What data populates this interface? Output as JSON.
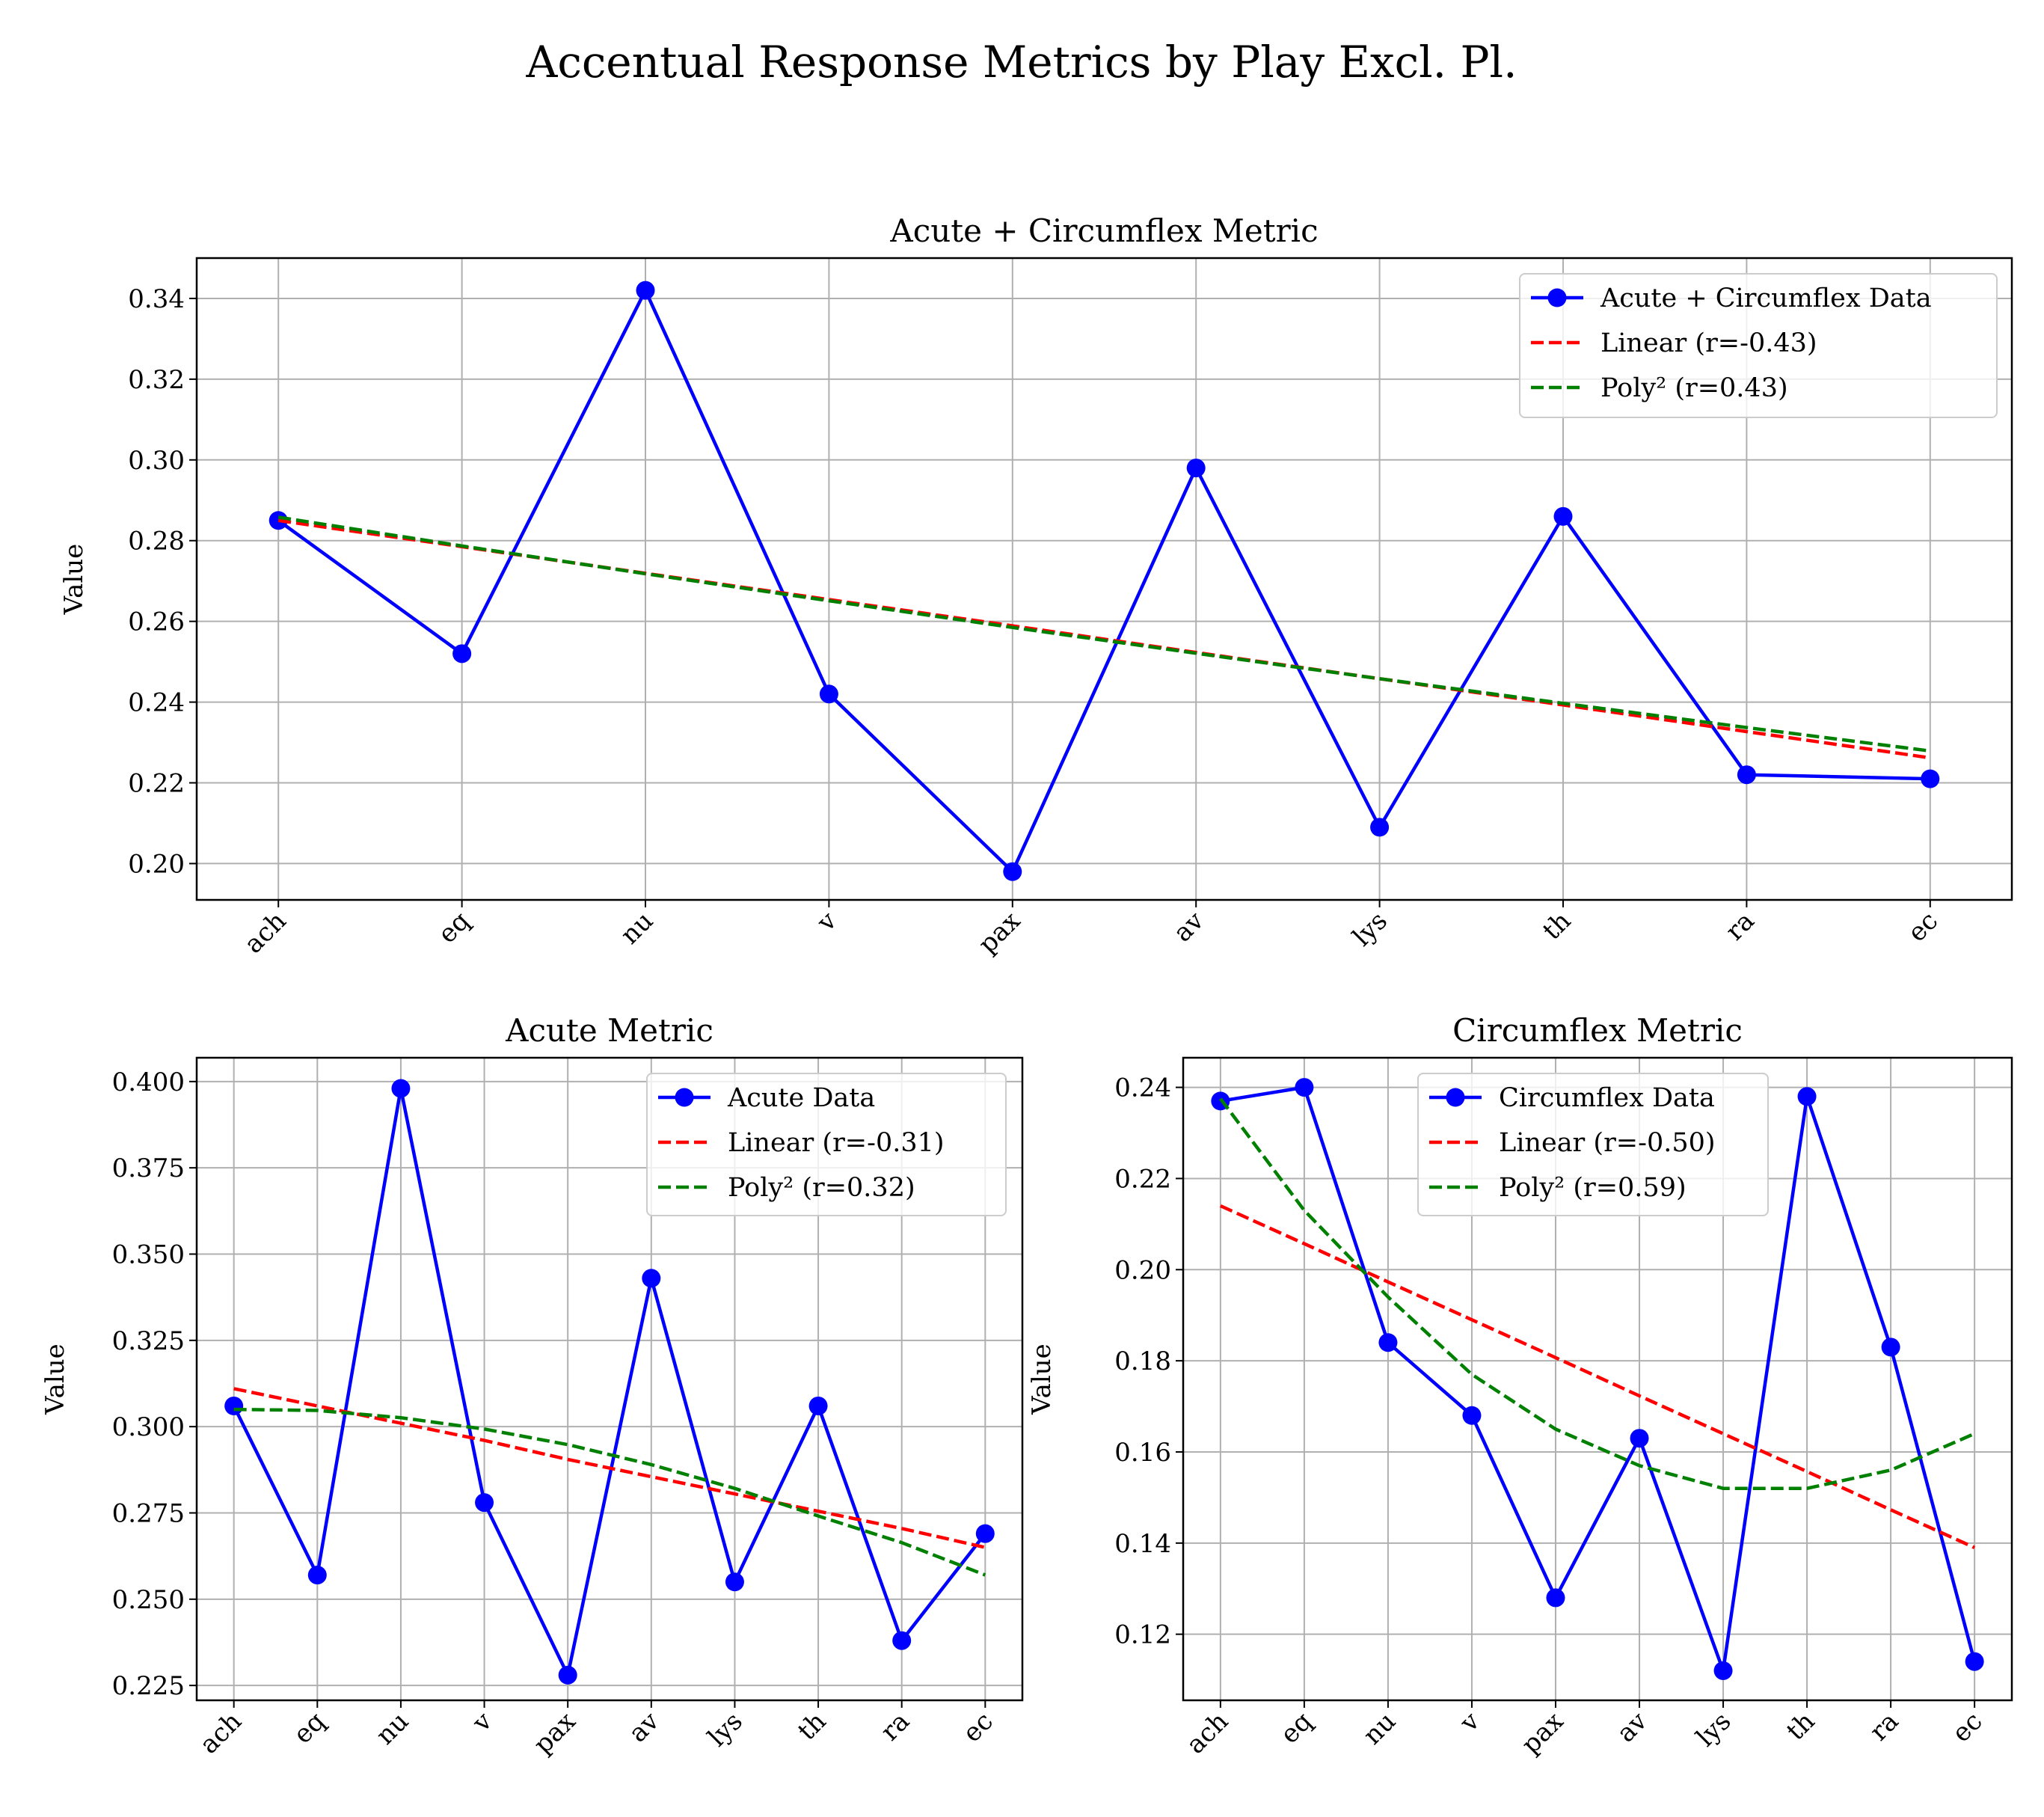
{
  "figure": {
    "title": "Accentual Response Metrics by Play Excl. Pl."
  },
  "colors": {
    "data": "#0000ff",
    "linear": "#ff0000",
    "poly": "#008000",
    "grid": "#b0b0b0",
    "axes": "#000000"
  },
  "chart_data": [
    {
      "type": "line",
      "title": "Acute + Circumflex Metric",
      "xlabel": "",
      "ylabel": "Value",
      "categories": [
        "ach",
        "eq",
        "nu",
        "v",
        "pax",
        "av",
        "lys",
        "th",
        "ra",
        "ec"
      ],
      "ylim": [
        0.191,
        0.35
      ],
      "yticks": [
        0.2,
        0.22,
        0.24,
        0.26,
        0.28,
        0.3,
        0.32,
        0.34
      ],
      "ytick_labels": [
        "0.20",
        "0.22",
        "0.24",
        "0.26",
        "0.28",
        "0.30",
        "0.32",
        "0.34"
      ],
      "grid": true,
      "legend": "top-right",
      "series": [
        {
          "name": "Acute + Circumflex Data",
          "style": "line-marker",
          "values": [
            0.285,
            0.252,
            0.342,
            0.242,
            0.198,
            0.298,
            0.209,
            0.286,
            0.222,
            0.221
          ]
        },
        {
          "name": "Linear (r=-0.43)",
          "style": "dashed",
          "values": [
            0.285,
            0.2785,
            0.2719,
            0.2654,
            0.2589,
            0.2523,
            0.2458,
            0.2393,
            0.2327,
            0.2262
          ]
        },
        {
          "name": "Poly² (r=0.43)",
          "style": "dashed",
          "values": [
            0.2858,
            0.2787,
            0.2718,
            0.2651,
            0.2585,
            0.2521,
            0.2458,
            0.2397,
            0.2337,
            0.2279
          ]
        }
      ]
    },
    {
      "type": "line",
      "title": "Acute Metric",
      "xlabel": "",
      "ylabel": "Value",
      "categories": [
        "ach",
        "eq",
        "nu",
        "v",
        "pax",
        "av",
        "lys",
        "th",
        "ra",
        "ec"
      ],
      "ylim": [
        0.2207,
        0.4069
      ],
      "yticks": [
        0.225,
        0.25,
        0.275,
        0.3,
        0.325,
        0.35,
        0.375,
        0.4
      ],
      "ytick_labels": [
        "0.225",
        "0.250",
        "0.275",
        "0.300",
        "0.325",
        "0.350",
        "0.375",
        "0.400"
      ],
      "grid": true,
      "legend": "top-right",
      "series": [
        {
          "name": "Acute Data",
          "style": "line-marker",
          "values": [
            0.306,
            0.257,
            0.398,
            0.278,
            0.228,
            0.343,
            0.255,
            0.306,
            0.238,
            0.269
          ]
        },
        {
          "name": "Linear (r=-0.31)",
          "style": "dashed",
          "values": [
            0.311,
            0.306,
            0.301,
            0.296,
            0.2905,
            0.2855,
            0.2805,
            0.2755,
            0.2705,
            0.265
          ]
        },
        {
          "name": "Poly² (r=0.32)",
          "style": "dashed",
          "values": [
            0.305,
            0.3047,
            0.3026,
            0.2993,
            0.2948,
            0.289,
            0.2821,
            0.2741,
            0.2664,
            0.257
          ]
        }
      ]
    },
    {
      "type": "line",
      "title": "Circumflex Metric",
      "xlabel": "",
      "ylabel": "Value",
      "categories": [
        "ach",
        "eq",
        "nu",
        "v",
        "pax",
        "av",
        "lys",
        "th",
        "ra",
        "ec"
      ],
      "ylim": [
        0.1055,
        0.2465
      ],
      "yticks": [
        0.12,
        0.14,
        0.16,
        0.18,
        0.2,
        0.22,
        0.24
      ],
      "ytick_labels": [
        "0.12",
        "0.14",
        "0.16",
        "0.18",
        "0.20",
        "0.22",
        "0.24"
      ],
      "grid": true,
      "legend": "top-center",
      "series": [
        {
          "name": "Circumflex Data",
          "style": "line-marker",
          "values": [
            0.237,
            0.24,
            0.184,
            0.168,
            0.128,
            0.163,
            0.112,
            0.238,
            0.183,
            0.114
          ]
        },
        {
          "name": "Linear (r=-0.50)",
          "style": "dashed",
          "values": [
            0.214,
            0.2057,
            0.1973,
            0.189,
            0.1807,
            0.1723,
            0.164,
            0.1557,
            0.1473,
            0.139
          ]
        },
        {
          "name": "Poly² (r=0.59)",
          "style": "dashed",
          "values": [
            0.2375,
            0.213,
            0.194,
            0.177,
            0.165,
            0.157,
            0.152,
            0.152,
            0.156,
            0.164
          ]
        }
      ]
    }
  ]
}
